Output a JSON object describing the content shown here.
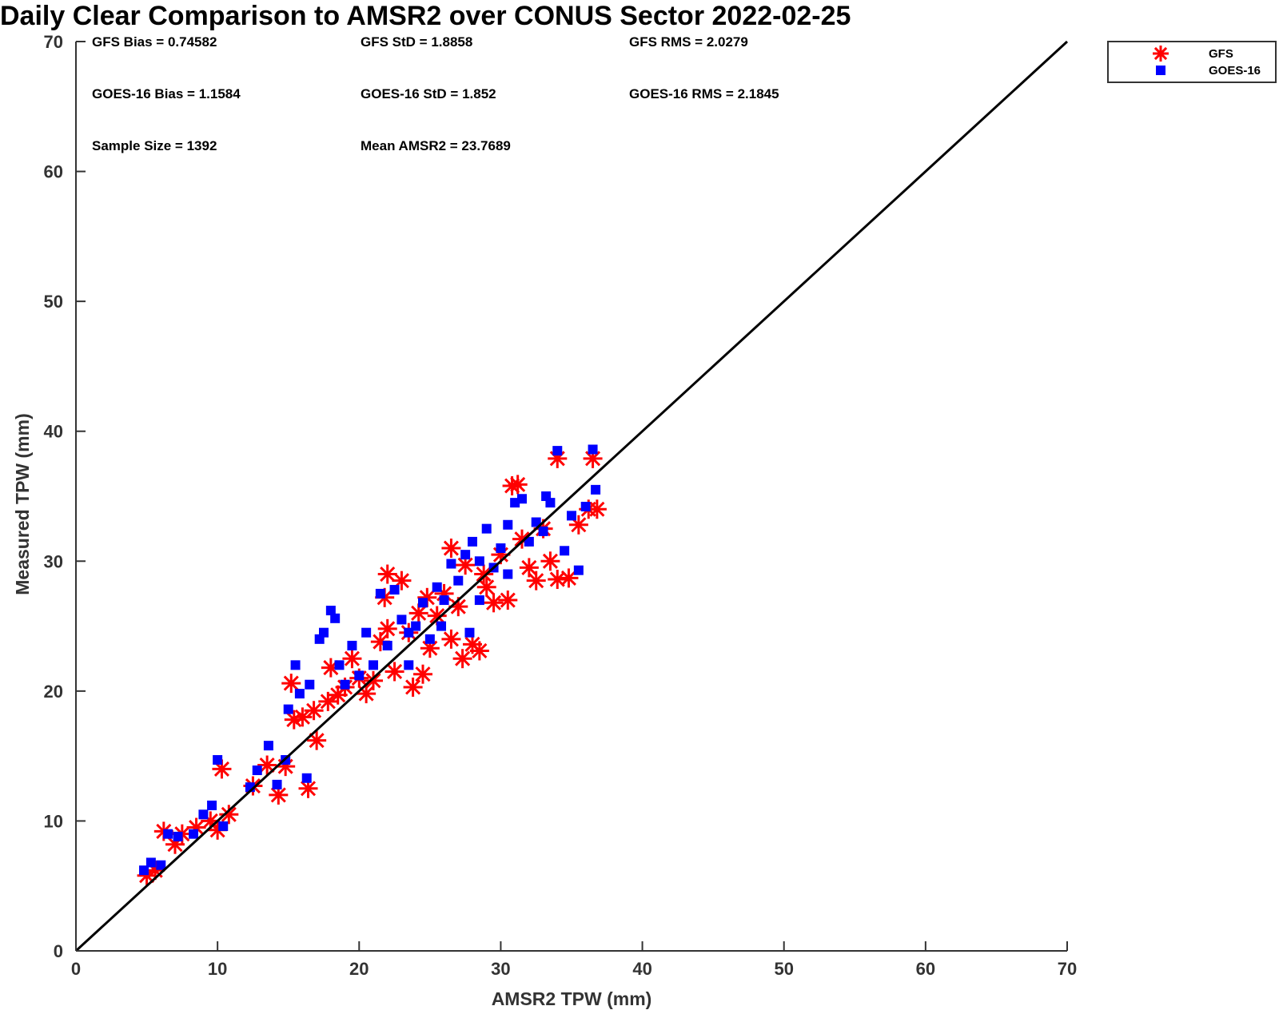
{
  "chart_data": {
    "type": "scatter",
    "title": "Daily Clear Comparison to AMSR2 over CONUS Sector 2022-02-25",
    "xlabel": "AMSR2 TPW (mm)",
    "ylabel": "Measured TPW (mm)",
    "xlim": [
      0,
      70
    ],
    "ylim": [
      0,
      70
    ],
    "xticks": [
      0,
      10,
      20,
      30,
      40,
      50,
      60,
      70
    ],
    "yticks": [
      0,
      10,
      20,
      30,
      40,
      50,
      60,
      70
    ],
    "reference_line": {
      "x": [
        0,
        70
      ],
      "y": [
        0,
        70
      ],
      "color": "#000000"
    },
    "stats": [
      "GFS Bias = 0.74582",
      "GFS StD = 1.8858",
      "GFS RMS = 2.0279",
      "GOES-16 Bias = 1.1584",
      "GOES-16 StD = 1.852",
      "GOES-16 RMS = 2.1845",
      "Sample Size = 1392",
      "Mean AMSR2 = 23.7689"
    ],
    "legend": {
      "position": "top-right",
      "entries": [
        "GFS",
        "GOES-16"
      ]
    },
    "series": [
      {
        "name": "GFS",
        "marker": "asterisk",
        "color": "#ff0000",
        "points": [
          [
            5.0,
            5.8
          ],
          [
            5.6,
            6.2
          ],
          [
            6.2,
            9.2
          ],
          [
            7.0,
            8.2
          ],
          [
            7.5,
            9.0
          ],
          [
            8.5,
            9.5
          ],
          [
            9.5,
            10.0
          ],
          [
            10.0,
            9.3
          ],
          [
            10.3,
            14.0
          ],
          [
            10.8,
            10.5
          ],
          [
            12.5,
            12.7
          ],
          [
            13.5,
            14.3
          ],
          [
            14.3,
            12.0
          ],
          [
            14.8,
            14.2
          ],
          [
            15.2,
            20.6
          ],
          [
            15.4,
            17.8
          ],
          [
            16.0,
            18.0
          ],
          [
            16.4,
            12.5
          ],
          [
            16.8,
            18.5
          ],
          [
            17.0,
            16.2
          ],
          [
            17.8,
            19.2
          ],
          [
            18.0,
            21.8
          ],
          [
            18.5,
            19.7
          ],
          [
            19.0,
            20.3
          ],
          [
            19.5,
            22.5
          ],
          [
            20.0,
            21.0
          ],
          [
            20.5,
            19.8
          ],
          [
            21.0,
            20.8
          ],
          [
            21.5,
            23.8
          ],
          [
            21.8,
            27.2
          ],
          [
            22.0,
            29.0
          ],
          [
            22.5,
            21.5
          ],
          [
            23.0,
            28.5
          ],
          [
            23.5,
            24.5
          ],
          [
            23.8,
            20.3
          ],
          [
            24.2,
            26.0
          ],
          [
            24.5,
            21.3
          ],
          [
            25.0,
            23.3
          ],
          [
            25.5,
            25.8
          ],
          [
            26.0,
            27.5
          ],
          [
            26.5,
            24.0
          ],
          [
            27.0,
            26.5
          ],
          [
            27.5,
            29.7
          ],
          [
            28.0,
            23.6
          ],
          [
            28.5,
            23.1
          ],
          [
            29.0,
            28.0
          ],
          [
            29.5,
            26.8
          ],
          [
            30.0,
            30.5
          ],
          [
            30.5,
            27.0
          ],
          [
            30.8,
            35.8
          ],
          [
            31.2,
            35.9
          ],
          [
            31.5,
            31.7
          ],
          [
            32.0,
            29.5
          ],
          [
            32.5,
            28.5
          ],
          [
            33.0,
            32.5
          ],
          [
            33.5,
            30.0
          ],
          [
            34.0,
            28.6
          ],
          [
            34.0,
            37.9
          ],
          [
            34.8,
            28.7
          ],
          [
            35.5,
            32.8
          ],
          [
            36.2,
            34.0
          ],
          [
            36.5,
            37.9
          ],
          [
            36.8,
            34.0
          ],
          [
            22.0,
            24.8
          ],
          [
            26.5,
            31.0
          ],
          [
            28.8,
            29.0
          ],
          [
            24.8,
            27.2
          ],
          [
            27.3,
            22.5
          ]
        ]
      },
      {
        "name": "GOES-16",
        "marker": "square",
        "color": "#0000ff",
        "points": [
          [
            4.8,
            6.2
          ],
          [
            5.3,
            6.8
          ],
          [
            6.0,
            6.6
          ],
          [
            6.5,
            9.0
          ],
          [
            7.2,
            8.8
          ],
          [
            8.3,
            9.0
          ],
          [
            9.0,
            10.5
          ],
          [
            9.6,
            11.2
          ],
          [
            10.0,
            14.7
          ],
          [
            10.4,
            9.6
          ],
          [
            12.3,
            12.6
          ],
          [
            12.8,
            13.9
          ],
          [
            13.6,
            15.8
          ],
          [
            14.2,
            12.8
          ],
          [
            14.8,
            14.7
          ],
          [
            15.0,
            18.6
          ],
          [
            15.5,
            22.0
          ],
          [
            15.8,
            19.8
          ],
          [
            16.3,
            13.3
          ],
          [
            16.5,
            20.5
          ],
          [
            17.2,
            24.0
          ],
          [
            17.5,
            24.5
          ],
          [
            18.0,
            26.2
          ],
          [
            18.3,
            25.6
          ],
          [
            18.6,
            22.0
          ],
          [
            19.0,
            20.5
          ],
          [
            19.5,
            23.5
          ],
          [
            20.0,
            21.2
          ],
          [
            20.5,
            24.5
          ],
          [
            21.0,
            22.0
          ],
          [
            21.5,
            27.5
          ],
          [
            22.0,
            23.5
          ],
          [
            22.5,
            27.8
          ],
          [
            23.0,
            25.5
          ],
          [
            23.5,
            22.0
          ],
          [
            24.0,
            25.0
          ],
          [
            24.5,
            26.8
          ],
          [
            25.0,
            24.0
          ],
          [
            25.5,
            28.0
          ],
          [
            26.0,
            27.0
          ],
          [
            26.5,
            29.8
          ],
          [
            27.0,
            28.5
          ],
          [
            27.5,
            30.5
          ],
          [
            28.0,
            31.5
          ],
          [
            28.5,
            27.0
          ],
          [
            29.0,
            32.5
          ],
          [
            29.5,
            29.5
          ],
          [
            30.0,
            31.0
          ],
          [
            30.5,
            32.8
          ],
          [
            31.0,
            34.5
          ],
          [
            31.5,
            34.8
          ],
          [
            32.0,
            31.5
          ],
          [
            32.5,
            33.0
          ],
          [
            33.0,
            32.3
          ],
          [
            33.5,
            34.5
          ],
          [
            34.0,
            38.5
          ],
          [
            34.5,
            30.8
          ],
          [
            35.0,
            33.5
          ],
          [
            35.5,
            29.3
          ],
          [
            36.0,
            34.2
          ],
          [
            36.5,
            38.6
          ],
          [
            36.7,
            35.5
          ],
          [
            23.5,
            24.5
          ],
          [
            25.8,
            25.0
          ],
          [
            27.8,
            24.5
          ],
          [
            28.5,
            30.0
          ],
          [
            30.5,
            29.0
          ],
          [
            33.2,
            35.0
          ]
        ]
      }
    ]
  }
}
